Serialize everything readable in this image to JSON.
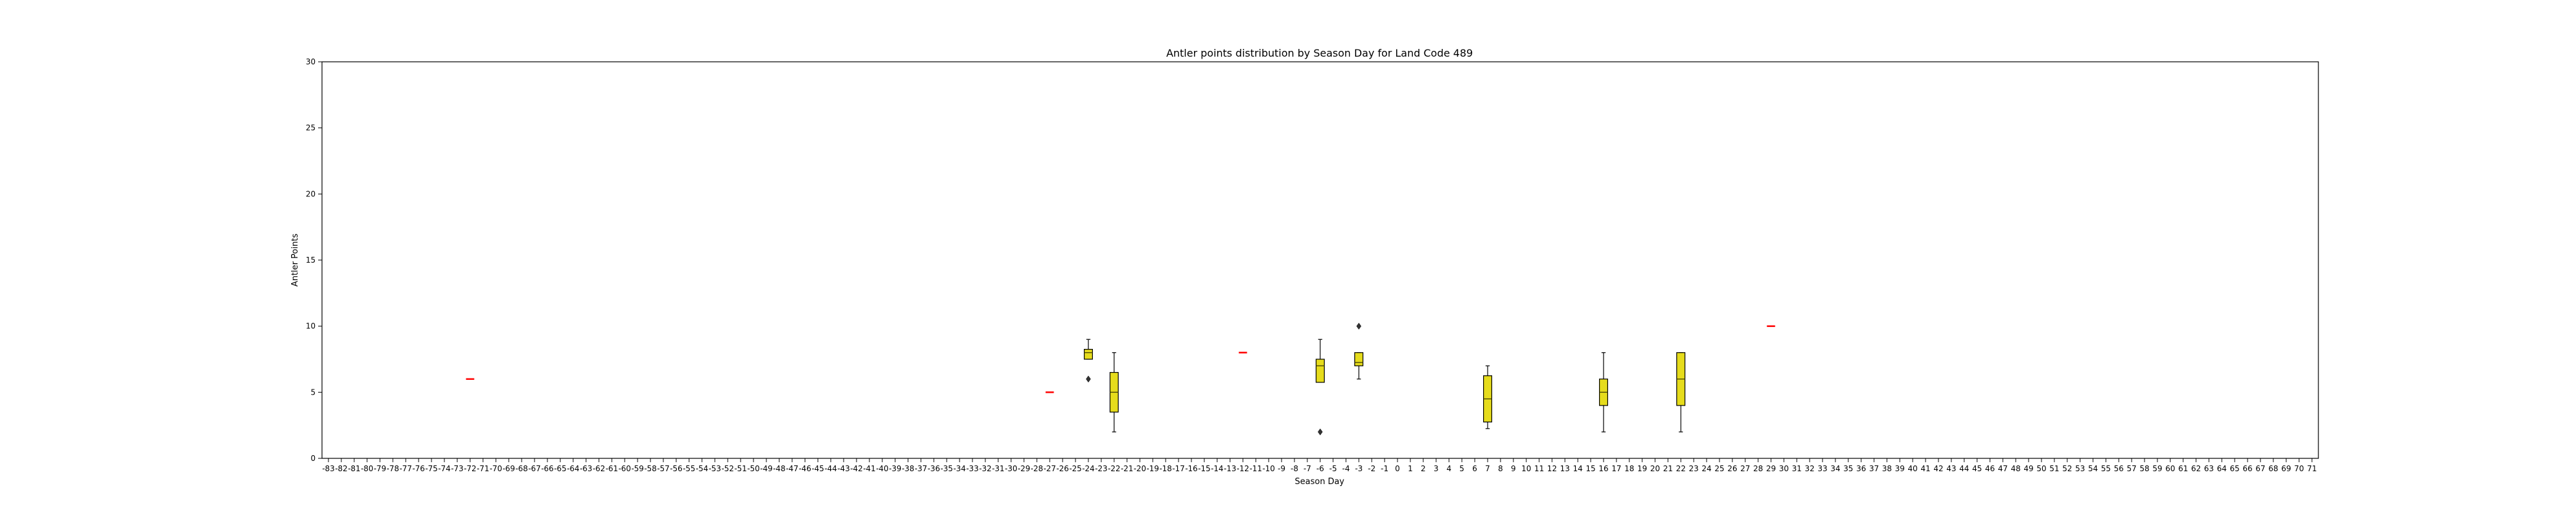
{
  "colors": {
    "box_fill": "#e6dc1c",
    "median_single": "#ff0000",
    "edge": "#000000"
  },
  "chart_data": {
    "type": "box",
    "title": "Antler points distribution by Season Day for Land Code 489",
    "xlabel": "Season Day",
    "ylabel": "Antler Points",
    "ylim": [
      0,
      30
    ],
    "yticks": [
      0,
      5,
      10,
      15,
      20,
      25,
      30
    ],
    "x_range": [
      -83,
      71
    ],
    "grid": false,
    "boxes": [
      {
        "day": -72,
        "q1": 6,
        "median": 6,
        "q3": 6,
        "whisker_low": 6,
        "whisker_high": 6,
        "outliers": []
      },
      {
        "day": -27,
        "q1": 5,
        "median": 5,
        "q3": 5,
        "whisker_low": 5,
        "whisker_high": 5,
        "outliers": []
      },
      {
        "day": -24,
        "q1": 7.5,
        "median": 8,
        "q3": 8.25,
        "whisker_low": 7.5,
        "whisker_high": 9,
        "outliers": [
          6
        ]
      },
      {
        "day": -22,
        "q1": 3.5,
        "median": 5,
        "q3": 6.5,
        "whisker_low": 2,
        "whisker_high": 8,
        "outliers": []
      },
      {
        "day": -12,
        "q1": 8,
        "median": 8,
        "q3": 8,
        "whisker_low": 8,
        "whisker_high": 8,
        "outliers": []
      },
      {
        "day": -6,
        "q1": 5.75,
        "median": 7,
        "q3": 7.5,
        "whisker_low": 5.75,
        "whisker_high": 9,
        "outliers": [
          2
        ]
      },
      {
        "day": -3,
        "q1": 7,
        "median": 7.25,
        "q3": 8,
        "whisker_low": 6,
        "whisker_high": 8,
        "outliers": [
          10
        ]
      },
      {
        "day": 7,
        "q1": 2.75,
        "median": 4.5,
        "q3": 6.25,
        "whisker_low": 2.25,
        "whisker_high": 7,
        "outliers": []
      },
      {
        "day": 16,
        "q1": 4,
        "median": 5,
        "q3": 6,
        "whisker_low": 2,
        "whisker_high": 8,
        "outliers": []
      },
      {
        "day": 22,
        "q1": 4,
        "median": 6,
        "q3": 8,
        "whisker_low": 2,
        "whisker_high": 8,
        "outliers": []
      },
      {
        "day": 29,
        "q1": 10,
        "median": 10,
        "q3": 10,
        "whisker_low": 10,
        "whisker_high": 10,
        "outliers": []
      }
    ]
  }
}
